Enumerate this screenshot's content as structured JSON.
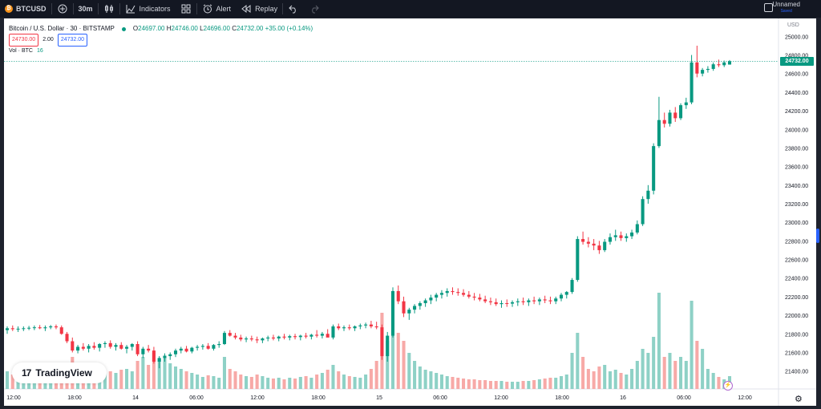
{
  "toolbar": {
    "symbol": "BTCUSD",
    "symbol_icon": "bitcoin-icon",
    "interval": "30m",
    "indicators_label": "Indicators",
    "alert_label": "Alert",
    "replay_label": "Replay",
    "layout_name": "Unnamed",
    "layout_status": "Saved"
  },
  "legend": {
    "title": "Bitcoin / U.S. Dollar · 30 · BITSTAMP",
    "open_label": "O",
    "open": "24697.00",
    "high_label": "H",
    "high": "24746.00",
    "low_label": "L",
    "low": "24696.00",
    "close_label": "C",
    "close": "24732.00",
    "change": "+35.00 (+0.14%)",
    "bid": "24730.00",
    "spread": "2.00",
    "ask": "24732.00",
    "volume_label": "Vol · BTC",
    "volume": "16"
  },
  "price_axis": {
    "currency": "USD",
    "current_price": "24732.00"
  },
  "watermark": {
    "text": "TradingView"
  },
  "colors": {
    "up": "#089981",
    "down": "#f23645",
    "up_vol": "#8ed1c6",
    "down_vol": "#f7a9a7",
    "background": "#ffffff",
    "toolbar": "#131722"
  },
  "chart_data": {
    "type": "candlestick",
    "ylim": [
      21250,
      25150
    ],
    "yticks": [
      "25000.00",
      "24800.00",
      "24600.00",
      "24400.00",
      "24200.00",
      "24000.00",
      "23800.00",
      "23600.00",
      "23400.00",
      "23200.00",
      "23000.00",
      "22800.00",
      "22600.00",
      "22400.00",
      "22200.00",
      "22000.00",
      "21800.00",
      "21600.00",
      "21400.00"
    ],
    "xticks": [
      "12:00",
      "18:00",
      "14",
      "06:00",
      "12:00",
      "18:00",
      "15",
      "06:00",
      "12:00",
      "18:00",
      "16",
      "06:00",
      "12:00"
    ],
    "current_price": 24732,
    "candles": [
      [
        21840,
        21880,
        21800,
        21860,
        22
      ],
      [
        21860,
        21890,
        21830,
        21850,
        18
      ],
      [
        21850,
        21880,
        21820,
        21855,
        15
      ],
      [
        21855,
        21880,
        21830,
        21860,
        20
      ],
      [
        21860,
        21885,
        21840,
        21865,
        14
      ],
      [
        21865,
        21890,
        21840,
        21870,
        16
      ],
      [
        21870,
        21895,
        21850,
        21860,
        18
      ],
      [
        21860,
        21890,
        21830,
        21870,
        15
      ],
      [
        21870,
        21895,
        21850,
        21880,
        17
      ],
      [
        21880,
        21900,
        21850,
        21870,
        16
      ],
      [
        21870,
        21890,
        21790,
        21800,
        30
      ],
      [
        21800,
        21820,
        21700,
        21720,
        32
      ],
      [
        21720,
        21760,
        21600,
        21620,
        40
      ],
      [
        21620,
        21680,
        21590,
        21660,
        25
      ],
      [
        21660,
        21700,
        21620,
        21640,
        22
      ],
      [
        21640,
        21690,
        21600,
        21670,
        20
      ],
      [
        21670,
        21710,
        21630,
        21650,
        22
      ],
      [
        21650,
        21700,
        21610,
        21690,
        24
      ],
      [
        21690,
        21720,
        21650,
        21700,
        20
      ],
      [
        21700,
        21730,
        21640,
        21660,
        22
      ],
      [
        21660,
        21700,
        21620,
        21680,
        20
      ],
      [
        21680,
        21710,
        21630,
        21640,
        24
      ],
      [
        21640,
        21680,
        21590,
        21660,
        25
      ],
      [
        21660,
        21700,
        21620,
        21690,
        22
      ],
      [
        21690,
        21720,
        21560,
        21580,
        35
      ],
      [
        21580,
        21660,
        21540,
        21640,
        40
      ],
      [
        21640,
        21680,
        21600,
        21620,
        30
      ],
      [
        21620,
        21660,
        21480,
        21500,
        45
      ],
      [
        21500,
        21560,
        21430,
        21540,
        38
      ],
      [
        21540,
        21590,
        21500,
        21560,
        42
      ],
      [
        21560,
        21600,
        21520,
        21580,
        32
      ],
      [
        21580,
        21640,
        21550,
        21620,
        28
      ],
      [
        21620,
        21660,
        21590,
        21640,
        25
      ],
      [
        21640,
        21670,
        21600,
        21610,
        22
      ],
      [
        21610,
        21660,
        21590,
        21650,
        20
      ],
      [
        21650,
        21680,
        21620,
        21660,
        18
      ],
      [
        21660,
        21690,
        21630,
        21670,
        15
      ],
      [
        21670,
        21700,
        21630,
        21640,
        17
      ],
      [
        21640,
        21690,
        21620,
        21680,
        16
      ],
      [
        21680,
        21720,
        21650,
        21690,
        14
      ],
      [
        21690,
        21830,
        21680,
        21810,
        40
      ],
      [
        21810,
        21840,
        21770,
        21780,
        25
      ],
      [
        21780,
        21810,
        21740,
        21760,
        22
      ],
      [
        21760,
        21790,
        21720,
        21740,
        18
      ],
      [
        21740,
        21770,
        21710,
        21750,
        16
      ],
      [
        21750,
        21780,
        21720,
        21740,
        15
      ],
      [
        21740,
        21770,
        21700,
        21730,
        18
      ],
      [
        21730,
        21760,
        21700,
        21750,
        16
      ],
      [
        21750,
        21780,
        21720,
        21760,
        14
      ],
      [
        21760,
        21790,
        21730,
        21750,
        13
      ],
      [
        21750,
        21780,
        21720,
        21770,
        14
      ],
      [
        21770,
        21800,
        21740,
        21760,
        12
      ],
      [
        21760,
        21790,
        21730,
        21775,
        14
      ],
      [
        21775,
        21800,
        21740,
        21765,
        13
      ],
      [
        21765,
        21790,
        21730,
        21780,
        15
      ],
      [
        21780,
        21810,
        21750,
        21770,
        16
      ],
      [
        21770,
        21800,
        21740,
        21790,
        14
      ],
      [
        21790,
        21840,
        21760,
        21780,
        18
      ],
      [
        21780,
        21820,
        21750,
        21800,
        20
      ],
      [
        21800,
        21850,
        21770,
        21760,
        24
      ],
      [
        21760,
        21900,
        21740,
        21880,
        30
      ],
      [
        21880,
        21910,
        21840,
        21860,
        22
      ],
      [
        21860,
        21890,
        21830,
        21870,
        18
      ],
      [
        21870,
        21900,
        21840,
        21860,
        16
      ],
      [
        21860,
        21890,
        21830,
        21880,
        15
      ],
      [
        21880,
        21910,
        21850,
        21890,
        14
      ],
      [
        21890,
        21920,
        21860,
        21900,
        18
      ],
      [
        21900,
        21940,
        21860,
        21880,
        25
      ],
      [
        21880,
        21930,
        21850,
        21870,
        35
      ],
      [
        21870,
        21900,
        21520,
        21560,
        95
      ],
      [
        21560,
        21820,
        21500,
        21780,
        60
      ],
      [
        21780,
        22300,
        21760,
        22260,
        110
      ],
      [
        22260,
        22320,
        22120,
        22150,
        70
      ],
      [
        22150,
        22200,
        21980,
        22020,
        60
      ],
      [
        22020,
        22080,
        21950,
        22060,
        45
      ],
      [
        22060,
        22120,
        22020,
        22100,
        35
      ],
      [
        22100,
        22150,
        22060,
        22130,
        28
      ],
      [
        22130,
        22180,
        22090,
        22160,
        24
      ],
      [
        22160,
        22220,
        22120,
        22190,
        22
      ],
      [
        22190,
        22240,
        22150,
        22220,
        20
      ],
      [
        22220,
        22270,
        22180,
        22240,
        18
      ],
      [
        22240,
        22290,
        22200,
        22260,
        16
      ],
      [
        22260,
        22300,
        22220,
        22250,
        15
      ],
      [
        22250,
        22290,
        22210,
        22240,
        14
      ],
      [
        22240,
        22280,
        22200,
        22220,
        13
      ],
      [
        22220,
        22260,
        22180,
        22200,
        12
      ],
      [
        22200,
        22240,
        22160,
        22190,
        12
      ],
      [
        22190,
        22230,
        22150,
        22170,
        11
      ],
      [
        22170,
        22210,
        22130,
        22150,
        11
      ],
      [
        22150,
        22190,
        22110,
        22140,
        10
      ],
      [
        22140,
        22180,
        22100,
        22120,
        10
      ],
      [
        22120,
        22160,
        22080,
        22130,
        10
      ],
      [
        22130,
        22170,
        22090,
        22125,
        9
      ],
      [
        22125,
        22160,
        22090,
        22140,
        9
      ],
      [
        22140,
        22180,
        22100,
        22150,
        9
      ],
      [
        22150,
        22190,
        22110,
        22140,
        10
      ],
      [
        22140,
        22180,
        22100,
        22160,
        10
      ],
      [
        22160,
        22200,
        22120,
        22150,
        11
      ],
      [
        22150,
        22190,
        22110,
        22170,
        12
      ],
      [
        22170,
        22210,
        22130,
        22160,
        13
      ],
      [
        22160,
        22200,
        22120,
        22150,
        14
      ],
      [
        22150,
        22200,
        22120,
        22180,
        14
      ],
      [
        22180,
        22240,
        22150,
        22220,
        16
      ],
      [
        22220,
        22260,
        22180,
        22250,
        18
      ],
      [
        22250,
        22400,
        22230,
        22380,
        45
      ],
      [
        22380,
        22850,
        22360,
        22820,
        70
      ],
      [
        22820,
        22900,
        22760,
        22790,
        40
      ],
      [
        22790,
        22840,
        22730,
        22770,
        25
      ],
      [
        22770,
        22820,
        22700,
        22750,
        22
      ],
      [
        22750,
        22800,
        22660,
        22700,
        28
      ],
      [
        22700,
        22820,
        22680,
        22790,
        30
      ],
      [
        22790,
        22880,
        22760,
        22840,
        22
      ],
      [
        22840,
        22920,
        22800,
        22860,
        24
      ],
      [
        22860,
        22900,
        22800,
        22830,
        20
      ],
      [
        22830,
        22880,
        22790,
        22850,
        18
      ],
      [
        22850,
        22920,
        22820,
        22890,
        25
      ],
      [
        22890,
        23020,
        22870,
        22980,
        35
      ],
      [
        22980,
        23280,
        22960,
        23250,
        50
      ],
      [
        23250,
        23400,
        23200,
        23340,
        45
      ],
      [
        23340,
        23850,
        23300,
        23820,
        65
      ],
      [
        23820,
        24350,
        23800,
        24100,
        120
      ],
      [
        24100,
        24180,
        24020,
        24060,
        40
      ],
      [
        24060,
        24210,
        24030,
        24180,
        45
      ],
      [
        24180,
        24240,
        24080,
        24120,
        35
      ],
      [
        24120,
        24280,
        24100,
        24260,
        40
      ],
      [
        24260,
        24340,
        24220,
        24290,
        35
      ],
      [
        24290,
        24800,
        24270,
        24720,
        110
      ],
      [
        24720,
        24900,
        24560,
        24600,
        60
      ],
      [
        24600,
        24660,
        24570,
        24640,
        50
      ],
      [
        24640,
        24680,
        24610,
        24650,
        25
      ],
      [
        24650,
        24720,
        24630,
        24700,
        20
      ],
      [
        24700,
        24750,
        24670,
        24690,
        15
      ],
      [
        24690,
        24740,
        24670,
        24720,
        12
      ],
      [
        24697,
        24746,
        24696,
        24732,
        16
      ]
    ]
  }
}
